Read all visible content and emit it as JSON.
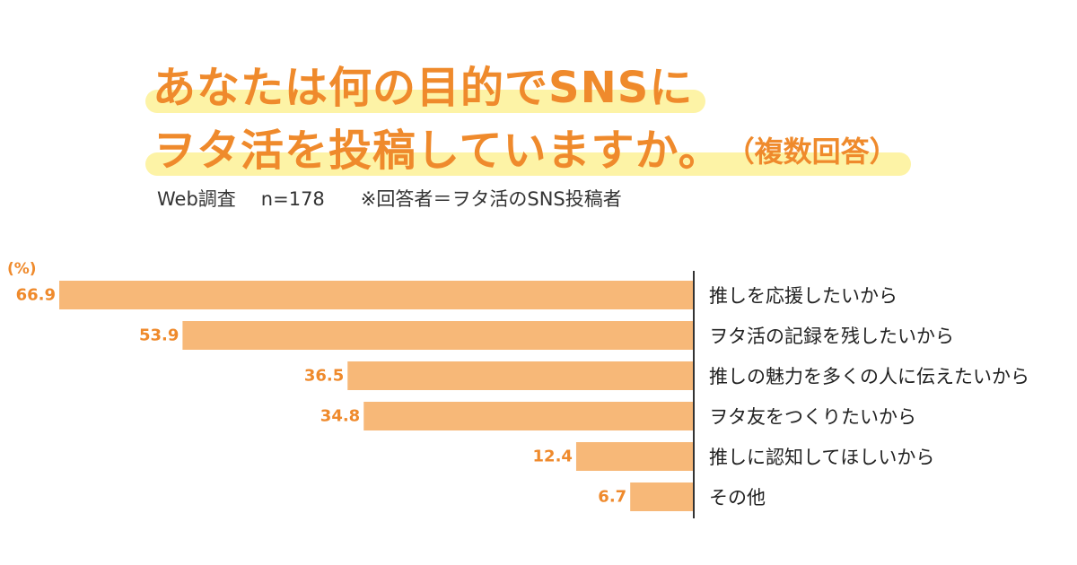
{
  "header": {
    "title_line1": "あなたは何の目的でSNSに",
    "title_line2": "ヲタ活を投稿していますか。",
    "title_suffix": "（複数回答）",
    "survey_type": "Web調査",
    "sample_size": "n=178",
    "respondent_note": "※回答者＝ヲタ活のSNS投稿者"
  },
  "colors": {
    "accent": "#ef8a2c",
    "bar": "#f7b878",
    "highlight": "#fdf3a6"
  },
  "chart_data": {
    "type": "bar",
    "orientation": "horizontal",
    "unit_label": "(%)",
    "categories": [
      "推しを応援したいから",
      "ヲタ活の記録を残したいから",
      "推しの魅力を多くの人に伝えたいから",
      "ヲタ友をつくりたいから",
      "推しに認知してほしいから",
      "その他"
    ],
    "values": [
      66.9,
      53.9,
      36.5,
      34.8,
      12.4,
      6.7
    ],
    "value_labels": [
      "66.9",
      "53.9",
      "36.5",
      "34.8",
      "12.4",
      "6.7"
    ],
    "xlim": [
      0,
      66.9
    ],
    "legend": "none",
    "grid": false
  }
}
